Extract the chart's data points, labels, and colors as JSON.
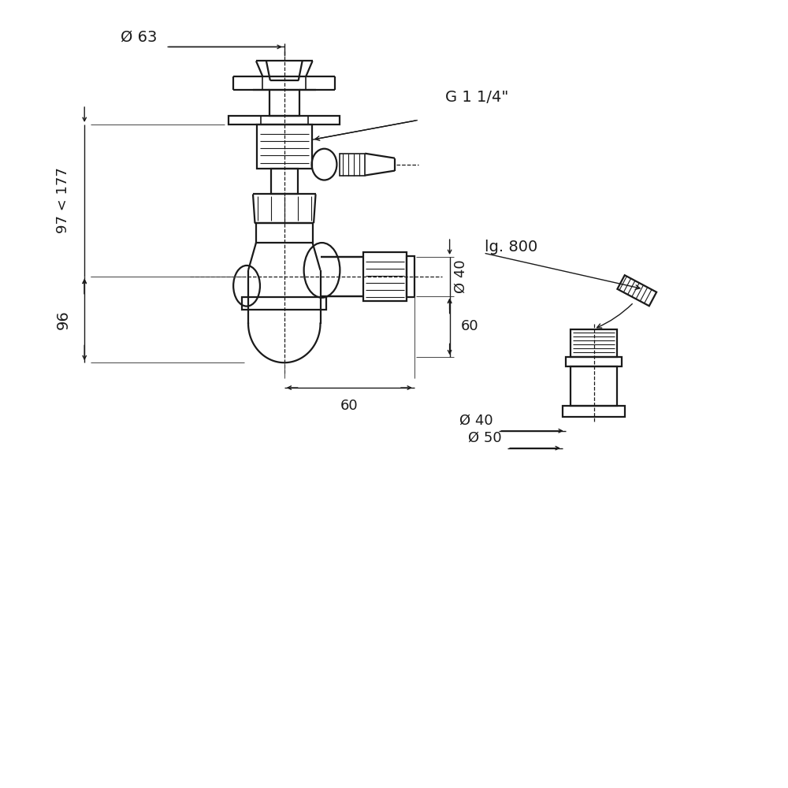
{
  "bg_color": "#ffffff",
  "line_color": "#1a1a1a",
  "text_color": "#1a1a1a",
  "fig_width": 10,
  "fig_height": 10,
  "annotations": {
    "diam_63": "Ø 63",
    "g_1_14": "G 1 1/4\"",
    "dim_97_177": "97 < 177",
    "dim_96": "96",
    "dim_60_horiz": "60",
    "dim_60_vert": "60",
    "diam_40_vert": "Ø 40",
    "lg_800": "lg. 800",
    "diam_40_horiz": "Ø 40",
    "diam_50": "Ø 50"
  }
}
